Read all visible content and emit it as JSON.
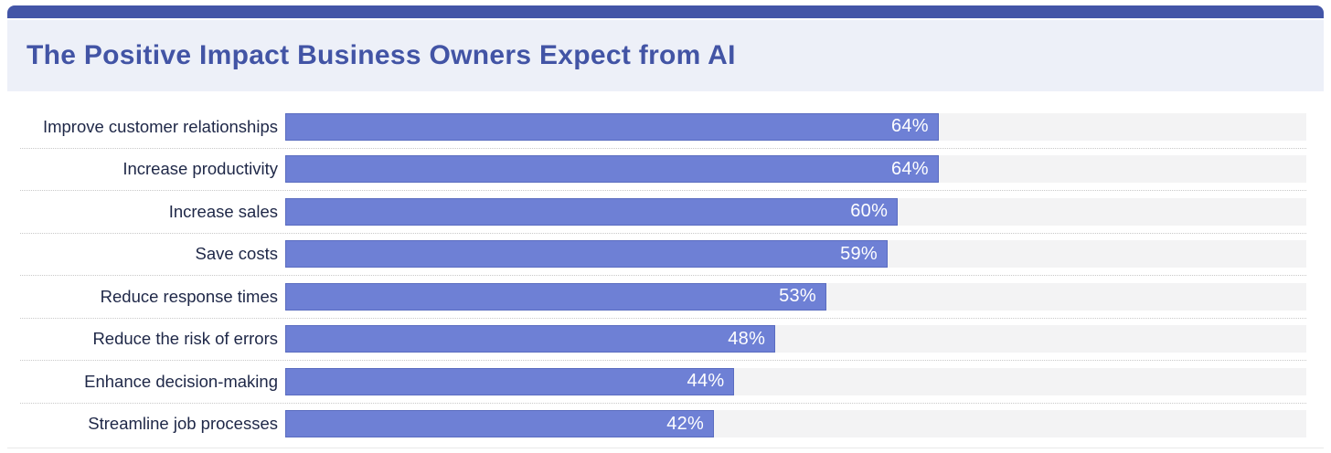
{
  "page": {
    "title": "The Positive Impact Business Owners Expect from AI"
  },
  "colors": {
    "accent_bar": "#4355a7",
    "header_bg": "#edf0f8",
    "title_color": "#4254a5",
    "bar_fill": "#6e80d5",
    "bar_border": "#5a6cc0",
    "track_bg": "#f3f3f4",
    "label_color": "#1e2747",
    "value_color": "#ffffff",
    "separator": "#c9c9c9"
  },
  "chart_data": {
    "type": "bar",
    "orientation": "horizontal",
    "title": "The Positive Impact Business Owners Expect from AI",
    "categories": [
      "Improve customer relationships",
      "Increase productivity",
      "Increase sales",
      "Save costs",
      "Reduce response times",
      "Reduce the risk of errors",
      "Enhance decision-making",
      "Streamline job processes"
    ],
    "values": [
      64,
      64,
      60,
      59,
      53,
      48,
      44,
      42
    ],
    "value_labels": [
      "64%",
      "64%",
      "60%",
      "59%",
      "53%",
      "48%",
      "44%",
      "42%"
    ],
    "unit": "%",
    "xlim": [
      0,
      100
    ],
    "grid": false,
    "legend": false,
    "data_labels_position": "inside-end"
  }
}
